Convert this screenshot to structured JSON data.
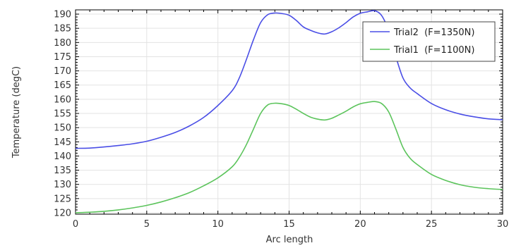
{
  "chart_data": {
    "type": "line",
    "title": "",
    "xlabel": "Arc length",
    "ylabel": "Temperature (degC)",
    "xlim": [
      0,
      30
    ],
    "ylim": [
      119.5,
      191.5
    ],
    "x_ticks": [
      0,
      5,
      10,
      15,
      20,
      25,
      30
    ],
    "y_ticks": [
      120,
      125,
      130,
      135,
      140,
      145,
      150,
      155,
      160,
      165,
      170,
      175,
      180,
      185,
      190
    ],
    "grid": true,
    "legend_position": "top-right",
    "series": [
      {
        "name": "Trial2  (F=1350N)",
        "color": "#4a4ee6",
        "x": [
          0,
          1,
          2,
          3,
          4,
          5,
          6,
          7,
          8,
          9,
          10,
          11,
          11.5,
          12,
          12.5,
          13,
          13.5,
          14,
          14.5,
          15,
          15.5,
          16,
          16.5,
          17,
          17.5,
          18,
          18.5,
          19,
          19.5,
          20,
          20.5,
          21,
          21.5,
          22,
          22.5,
          23,
          23.5,
          24,
          25,
          26,
          27,
          28,
          29,
          30
        ],
        "y": [
          142.7,
          142.8,
          143.2,
          143.7,
          144.3,
          145.2,
          146.6,
          148.3,
          150.6,
          153.6,
          157.8,
          163,
          167.5,
          174,
          181,
          187,
          189.8,
          190.4,
          190.2,
          189.6,
          187.8,
          185.5,
          184.3,
          183.4,
          183,
          183.8,
          185.2,
          187,
          189,
          190.3,
          190.8,
          191.2,
          189.5,
          184,
          175,
          167.5,
          164,
          162,
          158.5,
          156.3,
          154.8,
          153.8,
          153.1,
          152.8
        ]
      },
      {
        "name": "Trial1  (F=1100N)",
        "color": "#5cc45c",
        "x": [
          0,
          1,
          2,
          3,
          4,
          5,
          6,
          7,
          8,
          9,
          10,
          11,
          11.5,
          12,
          12.5,
          13,
          13.5,
          14,
          14.5,
          15,
          15.5,
          16,
          16.5,
          17,
          17.5,
          18,
          18.5,
          19,
          19.5,
          20,
          20.5,
          21,
          21.5,
          22,
          22.5,
          23,
          23.5,
          24,
          25,
          26,
          27,
          28,
          29,
          30
        ],
        "y": [
          120,
          120.2,
          120.5,
          121,
          121.7,
          122.6,
          123.8,
          125.3,
          127.1,
          129.5,
          132.3,
          136.2,
          139.5,
          144,
          149.5,
          155,
          158,
          158.6,
          158.4,
          157.8,
          156.5,
          155,
          153.7,
          153,
          152.7,
          153.3,
          154.5,
          155.8,
          157.3,
          158.4,
          158.9,
          159.2,
          158.5,
          155.5,
          149.5,
          143,
          139.2,
          137,
          133.5,
          131.4,
          129.9,
          129,
          128.5,
          128.2
        ]
      }
    ]
  }
}
